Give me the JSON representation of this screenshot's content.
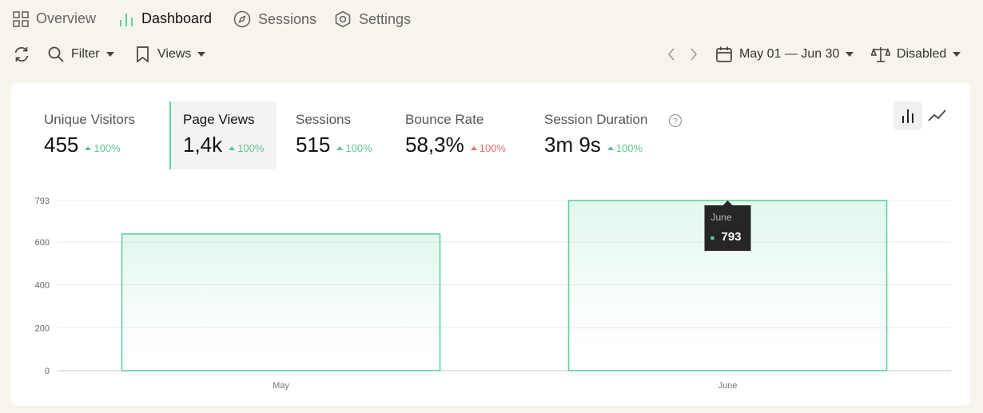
{
  "nav": {
    "tabs": [
      "Overview",
      "Dashboard",
      "Sessions",
      "Settings"
    ]
  },
  "toolbar": {
    "filter": "Filter",
    "views": "Views",
    "date_range": "May 01 — Jun 30",
    "comparison": "Disabled"
  },
  "metrics": [
    {
      "label": "Unique Visitors",
      "value": "455",
      "change": "100%",
      "color": "#5cc195"
    },
    {
      "label": "Page Views",
      "value": "1,4k",
      "change": "100%",
      "color": "#5cc195"
    },
    {
      "label": "Sessions",
      "value": "515",
      "change": "100%",
      "color": "#5cc195"
    },
    {
      "label": "Bounce Rate",
      "value": "58,3%",
      "change": "100%",
      "color": "#e07070"
    },
    {
      "label": "Session Duration",
      "value": "3m 9s",
      "change": "100%",
      "color": "#5cc195"
    }
  ],
  "chart_data": {
    "type": "bar",
    "categories": [
      "May",
      "June"
    ],
    "values": [
      637,
      793
    ],
    "color": "#5dd39e",
    "ylim": [
      0,
      793
    ],
    "yticks": [
      0,
      200,
      400,
      600,
      793
    ],
    "grid": true
  }
}
